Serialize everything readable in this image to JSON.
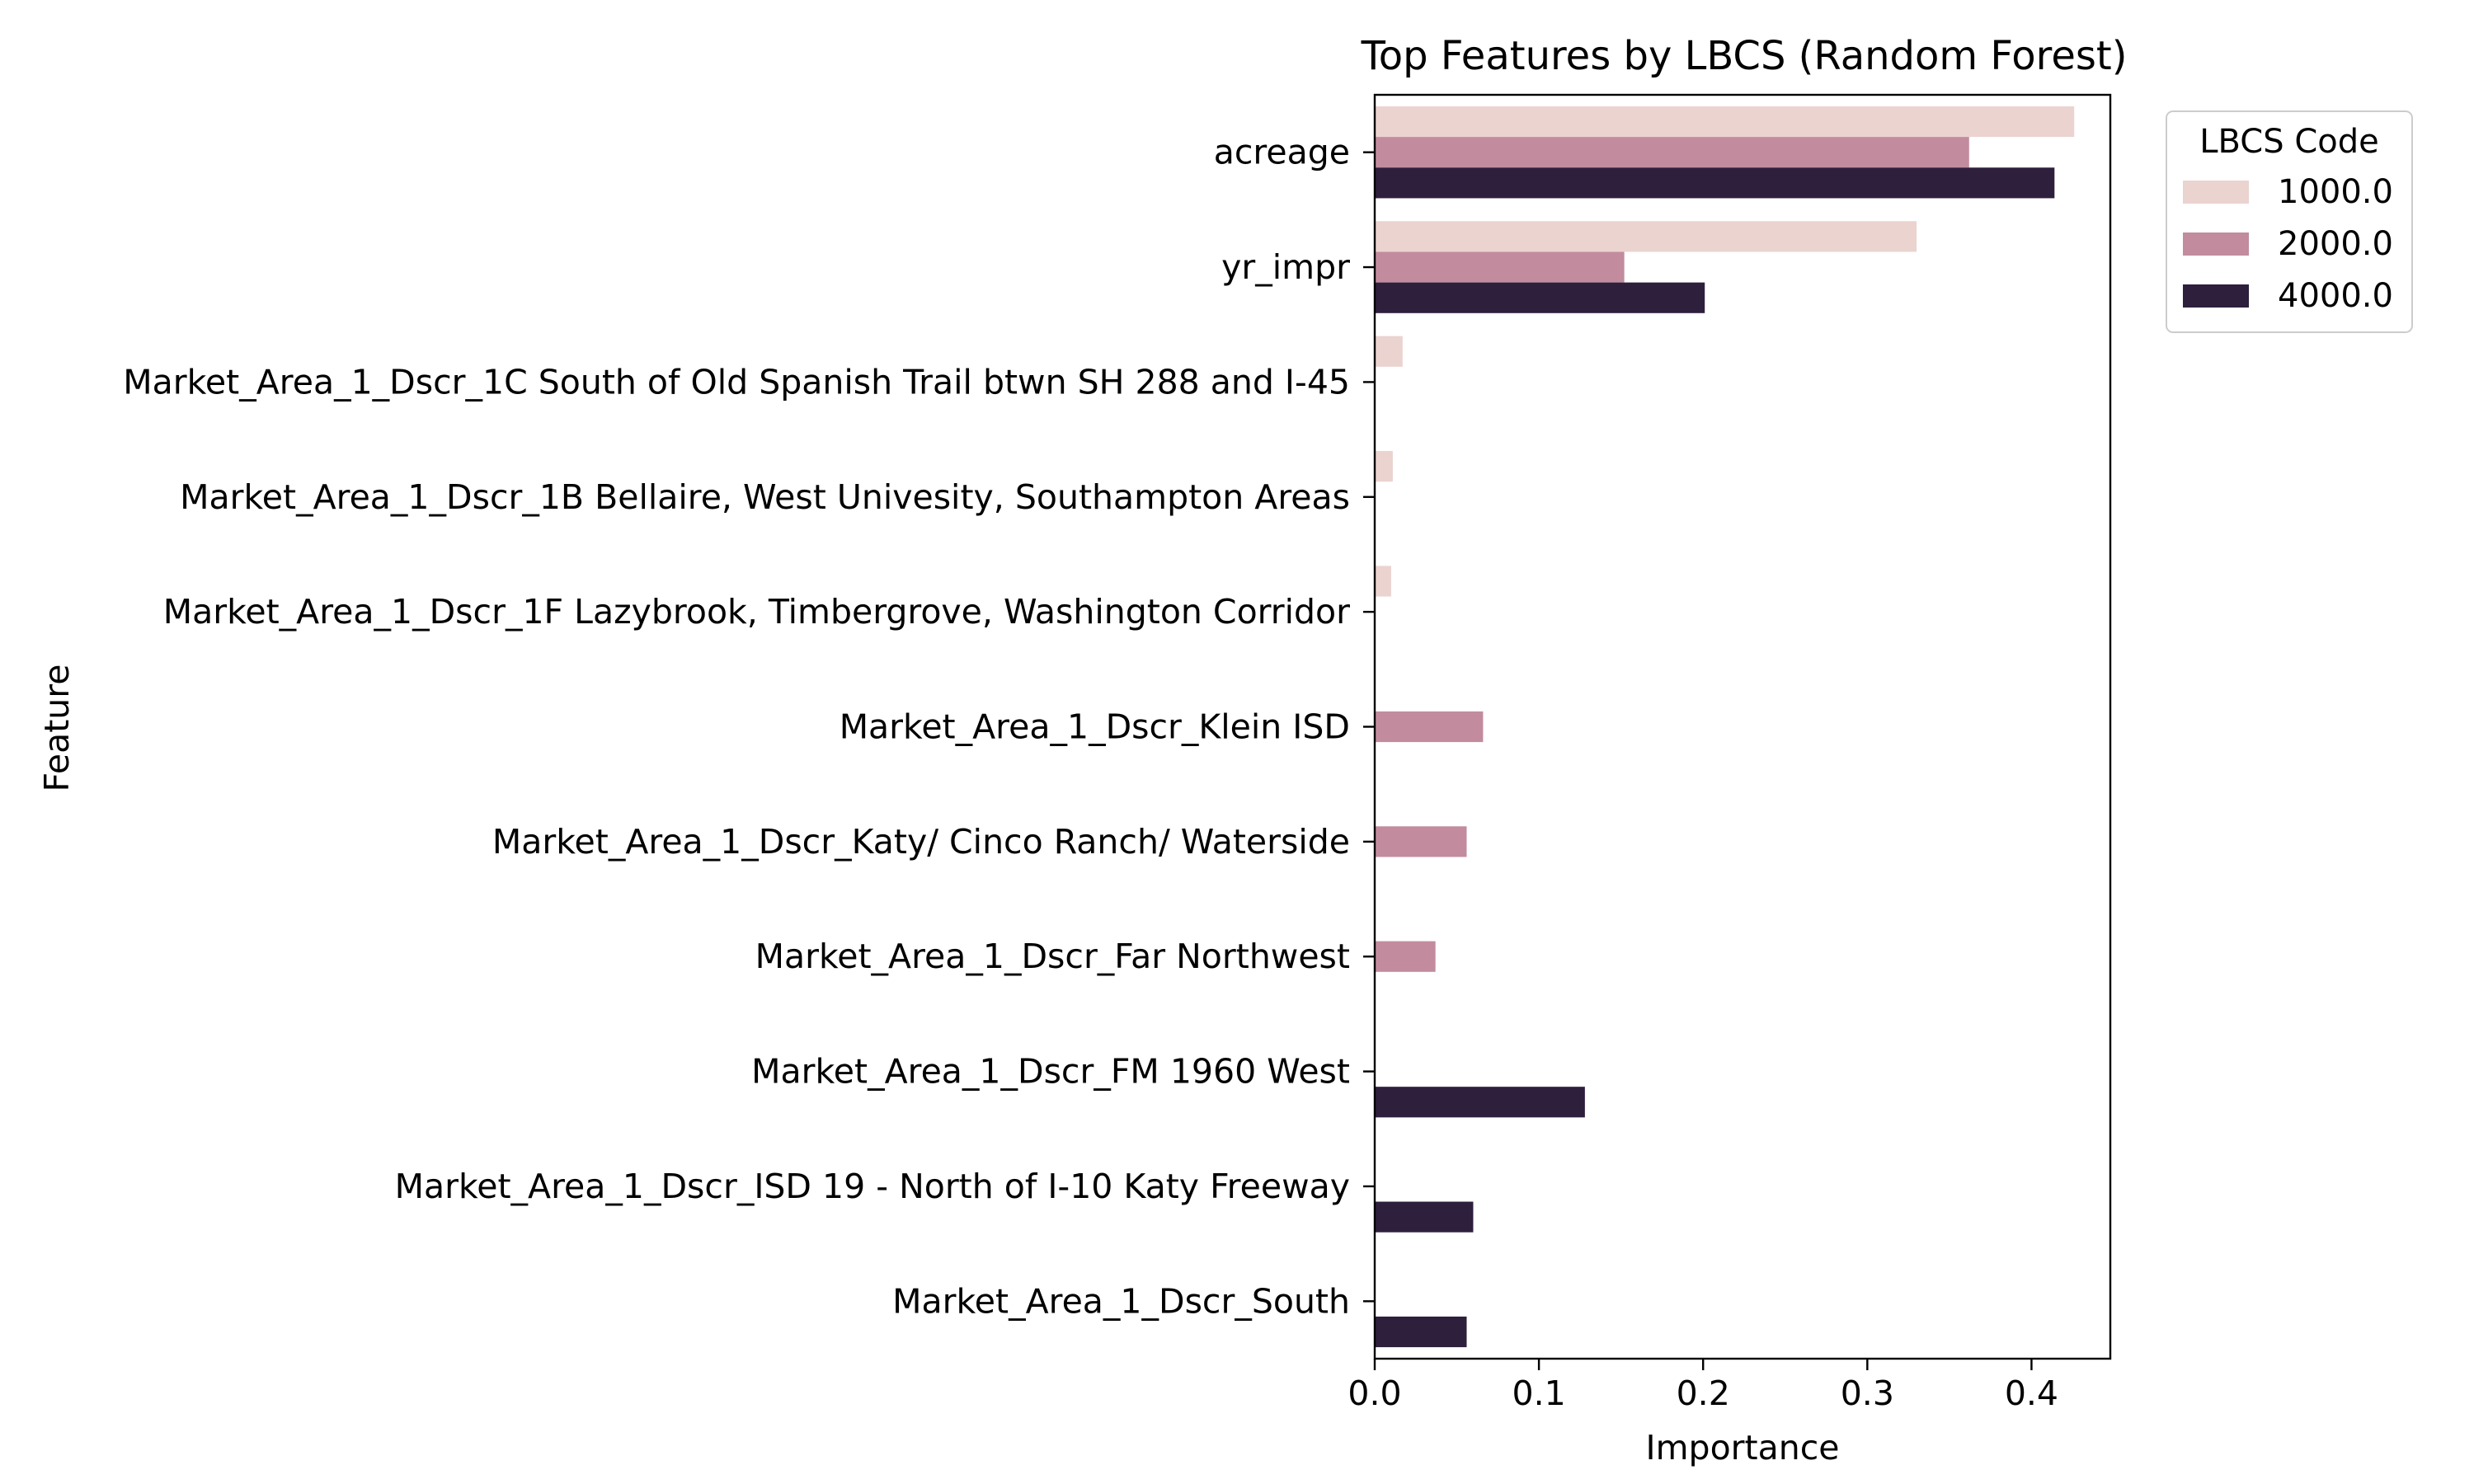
{
  "chart_data": {
    "type": "bar",
    "orientation": "horizontal",
    "title": "Top Features by LBCS (Random Forest)",
    "xlabel": "Importance",
    "ylabel": "Feature",
    "xlim": [
      0.0,
      0.448
    ],
    "xticks": [
      0.0,
      0.1,
      0.2,
      0.3,
      0.4
    ],
    "xtick_labels": [
      "0.0",
      "0.1",
      "0.2",
      "0.3",
      "0.4"
    ],
    "grid": false,
    "categories": [
      "acreage",
      "yr_impr",
      "Market_Area_1_Dscr_1C South of Old Spanish Trail btwn SH 288 and I-45",
      "Market_Area_1_Dscr_1B Bellaire, West Univesity, Southampton Areas",
      "Market_Area_1_Dscr_1F Lazybrook, Timbergrove, Washington Corridor",
      "Market_Area_1_Dscr_Klein ISD",
      "Market_Area_1_Dscr_Katy/ Cinco Ranch/ Waterside",
      "Market_Area_1_Dscr_Far Northwest",
      "Market_Area_1_Dscr_FM 1960 West",
      "Market_Area_1_Dscr_ISD 19 - North of I-10 Katy Freeway",
      "Market_Area_1_Dscr_South"
    ],
    "series": [
      {
        "name": "1000.0",
        "color": "#ebd3d0",
        "values": [
          0.426,
          0.33,
          0.017,
          0.011,
          0.01,
          null,
          null,
          null,
          null,
          null,
          null
        ]
      },
      {
        "name": "2000.0",
        "color": "#c28c9e",
        "values": [
          0.362,
          0.152,
          null,
          null,
          null,
          0.066,
          0.056,
          0.037,
          null,
          null,
          null
        ]
      },
      {
        "name": "4000.0",
        "color": "#2e1f3d",
        "values": [
          0.414,
          0.201,
          null,
          null,
          null,
          null,
          null,
          null,
          0.128,
          0.06,
          0.056
        ]
      }
    ],
    "legend": {
      "title": "LBCS Code",
      "position": "outside-top-right",
      "entries": [
        "1000.0",
        "2000.0",
        "4000.0"
      ]
    }
  }
}
